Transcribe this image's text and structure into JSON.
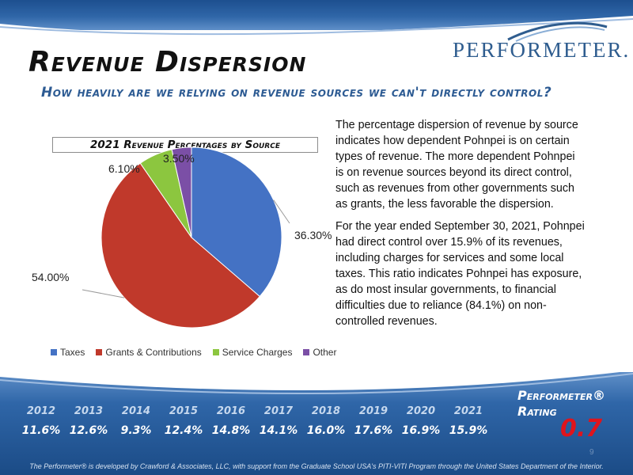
{
  "header": {
    "logo_text": "PERFORMETER.",
    "title": "Revenue Dispersion",
    "subtitle": "How heavily are we relying on revenue sources we can't directly control?"
  },
  "chart_data": {
    "type": "pie",
    "title": "2021 Revenue Percentages by Source",
    "categories": [
      "Taxes",
      "Grants & Contributions",
      "Service Charges",
      "Other"
    ],
    "values": [
      36.3,
      54.0,
      6.1,
      3.5
    ],
    "data_labels": [
      "36.30%",
      "54.00%",
      "6.10%",
      "3.50%"
    ],
    "colors": [
      "#4472c4",
      "#c0392b",
      "#8cc63f",
      "#7b4fa6"
    ],
    "legend_position": "bottom"
  },
  "description": {
    "paragraph1": "The percentage dispersion of revenue by source indicates how dependent Pohnpei is on certain types of revenue. The more dependent Pohnpei is on revenue sources beyond its direct control, such as revenues from other governments such as grants, the less favorable the dispersion.",
    "paragraph2": "For the year ended September 30, 2021, Pohnpei had direct control over 15.9% of its revenues, including charges for services and some local taxes. This ratio indicates Pohnpei has exposure, as do most insular governments, to financial difficulties due to reliance (84.1%) on non-controlled revenues."
  },
  "history": {
    "years": [
      "2012",
      "2013",
      "2014",
      "2015",
      "2016",
      "2017",
      "2018",
      "2019",
      "2020",
      "2021"
    ],
    "values": [
      "11.6%",
      "12.6%",
      "9.3%",
      "12.4%",
      "14.8%",
      "14.1%",
      "16.0%",
      "17.6%",
      "16.9%",
      "15.9%"
    ]
  },
  "rating": {
    "label_line1": "Performeter®",
    "label_line2": "Rating",
    "value": "0.7"
  },
  "page_number": "9",
  "footer": "The Performeter® is developed by Crawford & Associates, LLC, with support from the Graduate School USA's PITI-VITI Program through the United States Department of the Interior."
}
